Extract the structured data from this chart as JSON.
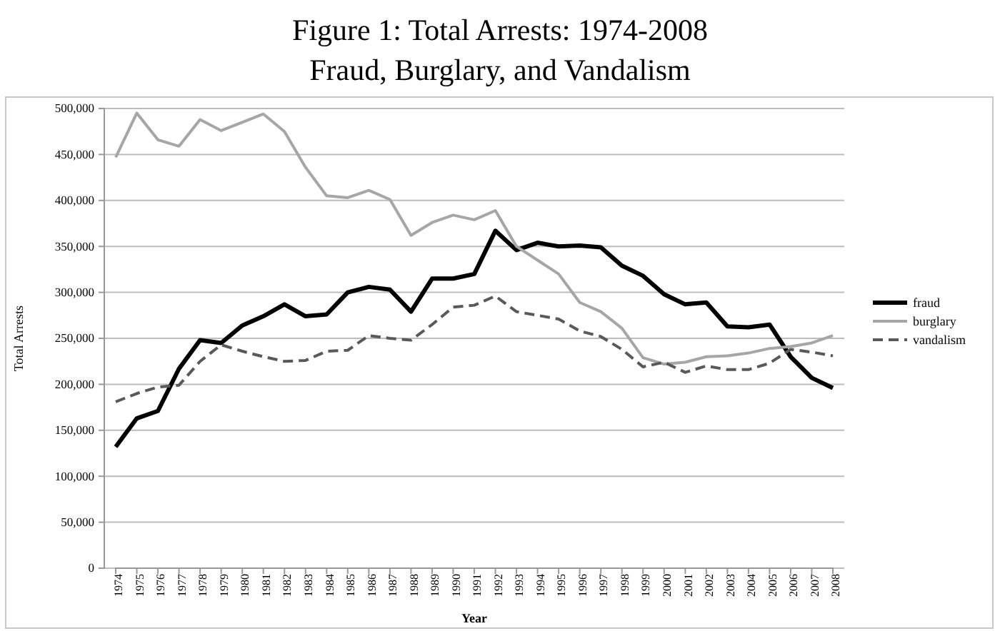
{
  "chart_data": {
    "type": "line",
    "title": "Figure 1: Total Arrests: 1974-2008",
    "subtitle": "Fraud, Burglary, and Vandalism",
    "xlabel": "Year",
    "ylabel": "Total Arrests",
    "categories": [
      "1974",
      "1975",
      "1976",
      "1977",
      "1978",
      "1979",
      "1980",
      "1981",
      "1982",
      "1983",
      "1984",
      "1985",
      "1986",
      "1987",
      "1988",
      "1989",
      "1990",
      "1991",
      "1992",
      "1993",
      "1994",
      "1995",
      "1996",
      "1997",
      "1998",
      "1999",
      "2000",
      "2001",
      "2002",
      "2003",
      "2004",
      "2005",
      "2006",
      "2007",
      "2008"
    ],
    "series": [
      {
        "name": "fraud",
        "color": "#000000",
        "line_style": "solid",
        "values": [
          132000,
          163000,
          171000,
          217000,
          248000,
          245000,
          264000,
          274000,
          287000,
          274000,
          276000,
          300000,
          306000,
          303000,
          279000,
          315000,
          315000,
          320000,
          367000,
          346000,
          354000,
          350000,
          351000,
          349000,
          329000,
          318000,
          298000,
          287000,
          289000,
          263000,
          262000,
          265000,
          230000,
          207000,
          196000
        ]
      },
      {
        "name": "burglary",
        "color": "#a6a6a6",
        "line_style": "solid",
        "values": [
          447000,
          495000,
          466000,
          459000,
          488000,
          476000,
          485000,
          494000,
          475000,
          436000,
          405000,
          403000,
          411000,
          401000,
          362000,
          376000,
          384000,
          379000,
          389000,
          350000,
          335000,
          320000,
          289000,
          279000,
          261000,
          229000,
          222000,
          224000,
          230000,
          231000,
          234000,
          239000,
          241000,
          245000,
          253000
        ]
      },
      {
        "name": "vandalism",
        "color": "#595959",
        "line_style": "dashed",
        "values": [
          181000,
          190000,
          197000,
          199000,
          225000,
          243000,
          236000,
          230000,
          225000,
          226000,
          236000,
          237000,
          253000,
          250000,
          248000,
          265000,
          284000,
          286000,
          296000,
          279000,
          275000,
          271000,
          258000,
          252000,
          238000,
          219000,
          224000,
          213000,
          220000,
          216000,
          216000,
          223000,
          238000,
          235000,
          231000
        ]
      }
    ],
    "ylim": [
      0,
      500000
    ],
    "yticks": [
      {
        "value": 0,
        "label": "0"
      },
      {
        "value": 50000,
        "label": "50,000"
      },
      {
        "value": 100000,
        "label": "100,000"
      },
      {
        "value": 150000,
        "label": "150,000"
      },
      {
        "value": 200000,
        "label": "200,000"
      },
      {
        "value": 250000,
        "label": "250,000"
      },
      {
        "value": 300000,
        "label": "300,000"
      },
      {
        "value": 350000,
        "label": "350,000"
      },
      {
        "value": 400000,
        "label": "400,000"
      },
      {
        "value": 450000,
        "label": "450,000"
      },
      {
        "value": 500000,
        "label": "500,000"
      }
    ],
    "grid": "y",
    "legend": "right",
    "marker": "none"
  }
}
